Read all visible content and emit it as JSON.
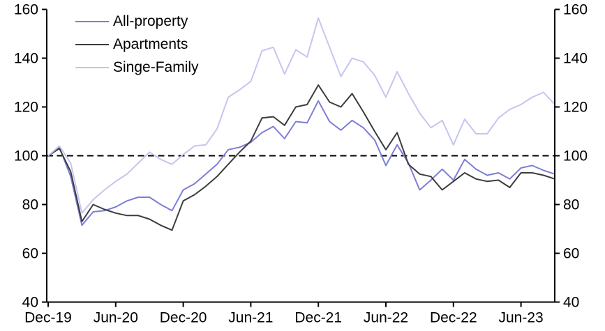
{
  "chart_data": {
    "type": "line",
    "title": "",
    "xlabel": "",
    "ylabel": "",
    "x": [
      "Dec-19",
      "Jan-20",
      "Feb-20",
      "Mar-20",
      "Apr-20",
      "May-20",
      "Jun-20",
      "Jul-20",
      "Aug-20",
      "Sep-20",
      "Oct-20",
      "Nov-20",
      "Dec-20",
      "Jan-21",
      "Feb-21",
      "Mar-21",
      "Apr-21",
      "May-21",
      "Jun-21",
      "Jul-21",
      "Aug-21",
      "Sep-21",
      "Oct-21",
      "Nov-21",
      "Dec-21",
      "Jan-22",
      "Feb-22",
      "Mar-22",
      "Apr-22",
      "May-22",
      "Jun-22",
      "Jul-22",
      "Aug-22",
      "Sep-22",
      "Oct-22",
      "Nov-22",
      "Dec-22",
      "Jan-23",
      "Feb-23",
      "Mar-23",
      "Apr-23",
      "May-23",
      "Jun-23",
      "Jul-23",
      "Aug-23",
      "Sep-23"
    ],
    "x_tick_indices": [
      0,
      6,
      12,
      18,
      24,
      30,
      36,
      42
    ],
    "x_tick_labels": [
      "Dec-19",
      "Jun-20",
      "Dec-20",
      "Jun-21",
      "Dec-21",
      "Jun-22",
      "Dec-22",
      "Jun-23"
    ],
    "ylim": [
      40,
      160
    ],
    "y_ticks": [
      40,
      60,
      80,
      100,
      120,
      140,
      160
    ],
    "y_axis_sides": [
      "left",
      "right"
    ],
    "grid": false,
    "legend_position": "top-left",
    "axis_color": "#000000",
    "tick_label_color": "#000000",
    "reference_line": {
      "value": 100,
      "style": "dashed",
      "color": "#000000"
    },
    "series": [
      {
        "name": "All-property",
        "color": "#7d7dd7",
        "values": [
          100,
          103.5,
          91.5,
          71.5,
          77,
          77.5,
          79,
          81.5,
          83,
          83,
          80,
          77.5,
          86,
          88.5,
          92.5,
          96.5,
          102.5,
          103.5,
          105.5,
          109.5,
          112,
          107,
          114,
          113.5,
          122.5,
          114,
          110.5,
          114.5,
          111.5,
          106.5,
          96,
          104.5,
          97,
          86,
          90,
          94.5,
          90,
          98.5,
          94.5,
          92,
          93,
          90.5,
          95,
          96,
          94,
          92.5
        ]
      },
      {
        "name": "Apartments",
        "color": "#3c3c3c",
        "values": [
          100,
          103,
          93.5,
          73,
          80,
          78,
          76.5,
          75.5,
          75.5,
          74,
          71.5,
          69.5,
          81.5,
          84,
          87.5,
          91.5,
          96.5,
          101.5,
          106,
          115.5,
          116,
          112.5,
          120,
          121,
          129,
          122,
          120,
          125.5,
          118,
          110,
          102.5,
          109.5,
          96.5,
          92.5,
          91.5,
          86,
          89.5,
          93,
          90.5,
          89.5,
          90,
          87,
          93,
          93,
          92,
          90.5
        ]
      },
      {
        "name": "Singe-Family",
        "color": "#c5c5f0",
        "values": [
          100,
          104,
          97,
          76.5,
          82,
          86,
          89.5,
          92.5,
          97,
          101.5,
          98.5,
          96.5,
          100.5,
          104,
          104.5,
          111,
          124,
          127,
          130.5,
          143,
          144.5,
          133.5,
          143.5,
          140.5,
          156.5,
          144.5,
          132.5,
          140,
          138.5,
          133,
          124,
          134.5,
          125.5,
          117.5,
          111.5,
          114.5,
          104.5,
          115,
          109,
          109,
          115.5,
          119,
          121,
          124,
          126,
          121
        ]
      }
    ]
  }
}
